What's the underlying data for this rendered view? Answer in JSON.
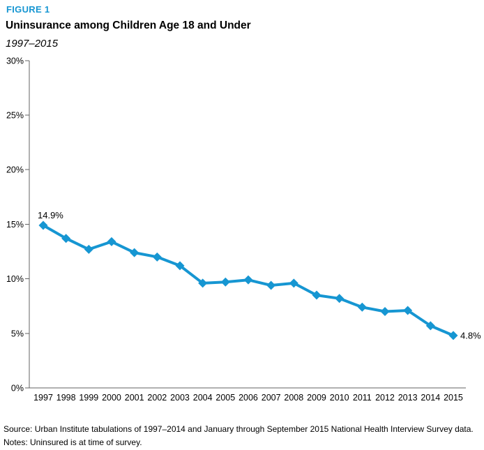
{
  "header": {
    "figure_label": "FIGURE 1",
    "title": "Uninsurance among Children Age 18 and Under",
    "subtitle": "1997–2015"
  },
  "footer": {
    "source": "Source: Urban Institute tabulations of 1997–2014 and January through September 2015 National Health Interview Survey data.",
    "notes": "Notes: Uninsured is at time of survey."
  },
  "colors": {
    "accent_blue": "#1696d2",
    "axis_gray": "#636363",
    "text_black": "#000000"
  },
  "chart_data": {
    "type": "line",
    "title": "Uninsurance among Children Age 18 and Under",
    "subtitle": "1997–2015",
    "xlabel": "",
    "ylabel": "",
    "categories": [
      "1997",
      "1998",
      "1999",
      "2000",
      "2001",
      "2002",
      "2003",
      "2004",
      "2005",
      "2006",
      "2007",
      "2008",
      "2009",
      "2010",
      "2011",
      "2012",
      "2013",
      "2014",
      "2015"
    ],
    "series": [
      {
        "name": "Uninsurance rate among children age 18 and under",
        "values": [
          14.9,
          13.7,
          12.7,
          13.4,
          12.4,
          12.0,
          11.2,
          9.6,
          9.7,
          9.9,
          9.4,
          9.6,
          8.5,
          8.2,
          7.4,
          7.0,
          7.1,
          5.7,
          4.8
        ]
      }
    ],
    "ylim": [
      0,
      30
    ],
    "ytick_values": [
      0,
      5,
      10,
      15,
      20,
      25,
      30
    ],
    "ytick_labels": [
      "0%",
      "5%",
      "10%",
      "15%",
      "20%",
      "25%",
      "30%"
    ],
    "grid": false,
    "legend": "none",
    "marker": "diamond",
    "annotations": [
      {
        "year": "1997",
        "text": "14.9%",
        "placement": "above-left"
      },
      {
        "year": "2015",
        "text": "4.8%",
        "placement": "right"
      }
    ]
  }
}
